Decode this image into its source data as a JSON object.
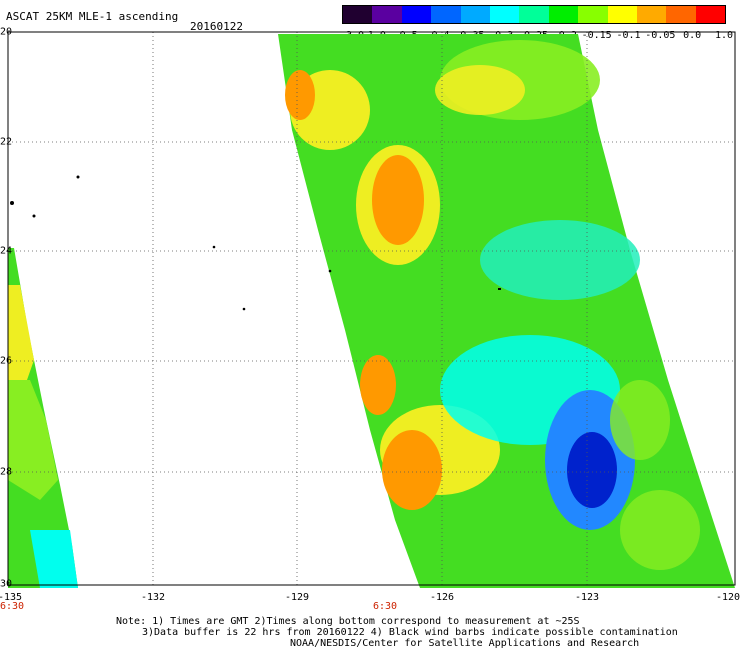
{
  "header": {
    "title": "ASCAT 25KM MLE-1 ascending",
    "date": "20160122"
  },
  "colorbar": {
    "ticks": [
      "-3.0",
      "-1.0",
      "-0.5",
      "-0.4",
      "-0.35",
      "-0.3",
      "-0.25",
      "-0.2",
      "-0.15",
      "-0.1",
      "-0.05",
      "0.0",
      "1.0"
    ],
    "colors": [
      "#200030",
      "#5a00a0",
      "#0000ff",
      "#0066ff",
      "#00aaff",
      "#00ffff",
      "#00ff99",
      "#00ee00",
      "#88ff00",
      "#ffff00",
      "#ffaa00",
      "#ff6600",
      "#ff0000"
    ]
  },
  "axes": {
    "lat_labels": [
      "20",
      "22",
      "24",
      "26",
      "28",
      "30"
    ],
    "lon_labels": [
      "-135",
      "-132",
      "-129",
      "-126",
      "-123",
      "-120"
    ],
    "time_labels": [
      "6:30",
      "6:30"
    ]
  },
  "notes": {
    "line1": "Note: 1) Times are GMT 2)Times along bottom correspond to measurement at ~25S",
    "line2": "3)Data buffer is 22 hrs from 20160122 4) Black wind barbs indicate possible contamination",
    "line3": "NOAA/NESDIS/Center for Satellite Applications and Research"
  },
  "map_colors": {
    "green": "#44dd22",
    "lime": "#88ee22",
    "yellow": "#eeee22",
    "orange": "#ff9900",
    "cyan": "#22eebb",
    "aqua": "#00ffee",
    "blue": "#2288ff",
    "darkblue": "#0022cc"
  }
}
